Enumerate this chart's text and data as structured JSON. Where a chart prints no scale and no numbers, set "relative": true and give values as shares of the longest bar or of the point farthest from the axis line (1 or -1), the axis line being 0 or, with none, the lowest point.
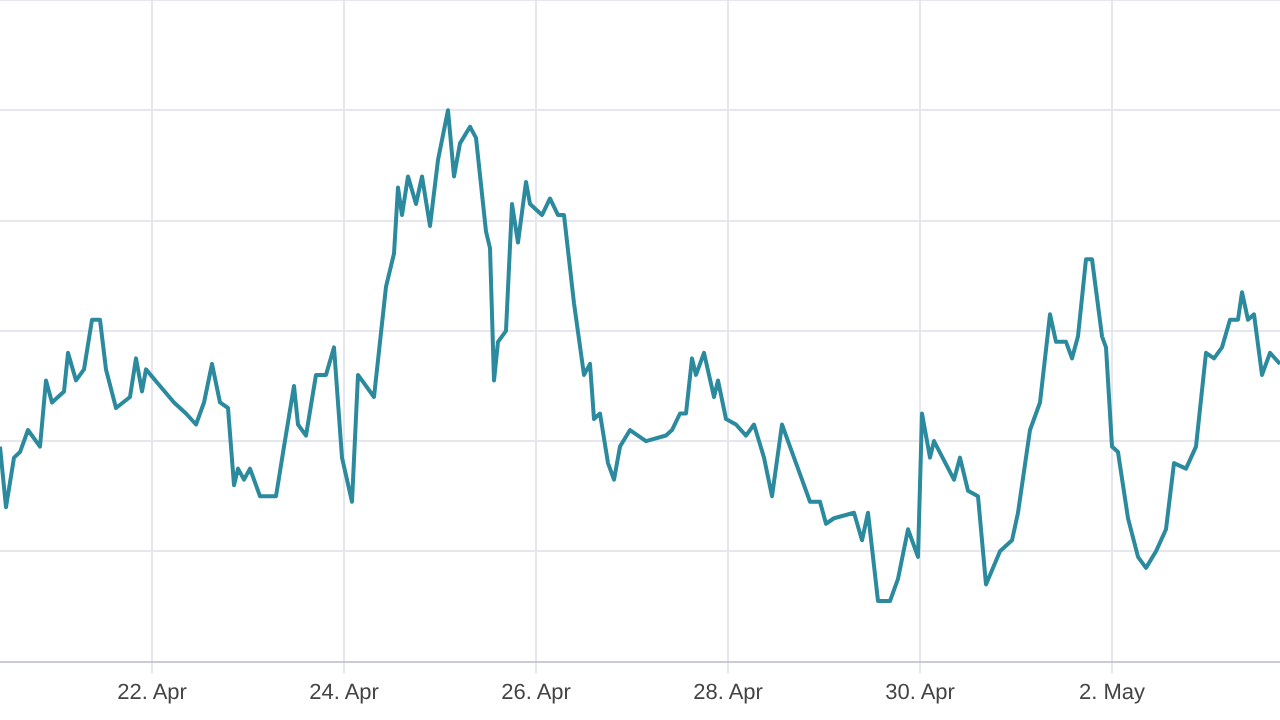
{
  "chart_data": {
    "type": "line",
    "relative": true,
    "grid": true,
    "legend": false,
    "marker": "none",
    "line_style": "solid",
    "xlim": [
      "--04-20T10:00",
      "--05-03T18:00"
    ],
    "xticks": [
      {
        "value": "--04-22",
        "label": "22. Apr"
      },
      {
        "value": "--04-24",
        "label": "24. Apr"
      },
      {
        "value": "--04-26",
        "label": "26. Apr"
      },
      {
        "value": "--04-28",
        "label": "28. Apr"
      },
      {
        "value": "--04-30",
        "label": "30. Apr"
      },
      {
        "value": "--05-02",
        "label": "2. May"
      }
    ],
    "series": [
      {
        "color": "#2b8a9e",
        "x": [
          "--04-20T10:00",
          "--04-20T11:30",
          "--04-20T13:30",
          "--04-20T15:00",
          "--04-20T17:00",
          "--04-20T20:00",
          "--04-20T21:30",
          "--04-20T23:00",
          "--04-21T02:00",
          "--04-21T03:00",
          "--04-21T05:00",
          "--04-21T07:00",
          "--04-21T09:00",
          "--04-21T11:00",
          "--04-21T12:30",
          "--04-21T15:00",
          "--04-21T18:30",
          "--04-21T20:00",
          "--04-21T21:30",
          "--04-21T22:30",
          "--04-22T02:00",
          "--04-22T05:30",
          "--04-22T08:30",
          "--04-22T11:00",
          "--04-22T13:00",
          "--04-22T15:00",
          "--04-22T17:00",
          "--04-22T19:00",
          "--04-22T20:30",
          "--04-22T21:30",
          "--04-22T23:00",
          "--04-23T00:30",
          "--04-23T03:00",
          "--04-23T07:00",
          "--04-23T09:00",
          "--04-23T11:30",
          "--04-23T12:30",
          "--04-23T14:30",
          "--04-23T17:00",
          "--04-23T19:30",
          "--04-23T21:30",
          "--04-23T23:30",
          "--04-24T02:00",
          "--04-24T03:30",
          "--04-24T07:30",
          "--04-24T10:30",
          "--04-24T12:30",
          "--04-24T13:30",
          "--04-24T14:30",
          "--04-24T16:00",
          "--04-24T18:00",
          "--04-24T19:30",
          "--04-24T21:30",
          "--04-24T23:30",
          "--04-25T02:00",
          "--04-25T03:30",
          "--04-25T05:00",
          "--04-25T07:30",
          "--04-25T09:00",
          "--04-25T11:30",
          "--04-25T12:30",
          "--04-25T13:30",
          "--04-25T14:30",
          "--04-25T16:30",
          "--04-25T18:00",
          "--04-25T19:30",
          "--04-25T21:30",
          "--04-25T22:30",
          "--04-26T01:30",
          "--04-26T03:30",
          "--04-26T05:30",
          "--04-26T07:00",
          "--04-26T09:30",
          "--04-26T12:00",
          "--04-26T13:30",
          "--04-26T14:30",
          "--04-26T16:00",
          "--04-26T18:00",
          "--04-26T19:30",
          "--04-26T21:00",
          "--04-26T23:30",
          "--04-27T03:30",
          "--04-27T08:30",
          "--04-27T10:00",
          "--04-27T12:00",
          "--04-27T13:30",
          "--04-27T15:00",
          "--04-27T16:00",
          "--04-27T18:00",
          "--04-27T20:30",
          "--04-27T21:30",
          "--04-27T23:30",
          "--04-28T02:00",
          "--04-28T04:30",
          "--04-28T06:30",
          "--04-28T09:00",
          "--04-28T11:00",
          "--04-28T13:30",
          "--04-28T15:30",
          "--04-28T18:30",
          "--04-28T20:30",
          "--04-28T23:00",
          "--04-29T00:30",
          "--04-29T02:30",
          "--04-29T07:30",
          "--04-29T09:30",
          "--04-29T11:00",
          "--04-29T13:30",
          "--04-29T16:30",
          "--04-29T18:30",
          "--04-29T21:00",
          "--04-29T23:30",
          "--04-30T00:30",
          "--04-30T02:30",
          "--04-30T03:30",
          "--04-30T08:30",
          "--04-30T10:00",
          "--04-30T12:00",
          "--04-30T14:30",
          "--04-30T16:30",
          "--04-30T20:00",
          "--04-30T23:00",
          "--05-01T00:30",
          "--05-01T03:30",
          "--05-01T06:00",
          "--05-01T08:30",
          "--05-01T10:00",
          "--05-01T12:30",
          "--05-01T14:00",
          "--05-01T15:30",
          "--05-01T17:30",
          "--05-01T19:00",
          "--05-01T21:30",
          "--05-01T22:30",
          "--05-02T00:00",
          "--05-02T01:30",
          "--05-02T04:00",
          "--05-02T06:30",
          "--05-02T08:30",
          "--05-02T11:00",
          "--05-02T13:30",
          "--05-02T15:30",
          "--05-02T18:30",
          "--05-02T21:00",
          "--05-02T23:30",
          "--05-03T01:30",
          "--05-03T03:30",
          "--05-03T05:30",
          "--05-03T07:30",
          "--05-03T08:30",
          "--05-03T10:00",
          "--05-03T11:30",
          "--05-03T13:30",
          "--05-03T15:30",
          "--05-03T18:00"
        ],
        "values": [
          0.39,
          0.28,
          0.37,
          0.38,
          0.42,
          0.39,
          0.51,
          0.47,
          0.49,
          0.56,
          0.51,
          0.53,
          0.62,
          0.62,
          0.53,
          0.46,
          0.48,
          0.55,
          0.49,
          0.53,
          0.5,
          0.47,
          0.45,
          0.43,
          0.47,
          0.54,
          0.47,
          0.46,
          0.32,
          0.35,
          0.33,
          0.35,
          0.3,
          0.3,
          0.39,
          0.5,
          0.43,
          0.41,
          0.52,
          0.52,
          0.57,
          0.37,
          0.29,
          0.52,
          0.48,
          0.68,
          0.74,
          0.86,
          0.81,
          0.88,
          0.83,
          0.88,
          0.79,
          0.91,
          1.0,
          0.88,
          0.94,
          0.97,
          0.95,
          0.78,
          0.75,
          0.51,
          0.58,
          0.6,
          0.83,
          0.76,
          0.87,
          0.83,
          0.81,
          0.84,
          0.81,
          0.81,
          0.65,
          0.52,
          0.54,
          0.44,
          0.45,
          0.36,
          0.33,
          0.39,
          0.42,
          0.4,
          0.41,
          0.42,
          0.45,
          0.45,
          0.55,
          0.52,
          0.56,
          0.48,
          0.51,
          0.44,
          0.43,
          0.41,
          0.43,
          0.37,
          0.3,
          0.43,
          0.39,
          0.33,
          0.29,
          0.29,
          0.25,
          0.26,
          0.27,
          0.22,
          0.27,
          0.11,
          0.11,
          0.15,
          0.24,
          0.19,
          0.45,
          0.37,
          0.4,
          0.33,
          0.37,
          0.31,
          0.3,
          0.14,
          0.2,
          0.22,
          0.27,
          0.42,
          0.47,
          0.63,
          0.58,
          0.58,
          0.55,
          0.59,
          0.73,
          0.73,
          0.59,
          0.57,
          0.39,
          0.38,
          0.26,
          0.19,
          0.17,
          0.2,
          0.24,
          0.36,
          0.35,
          0.39,
          0.56,
          0.55,
          0.57,
          0.62,
          0.62,
          0.67,
          0.62,
          0.63,
          0.52,
          0.56,
          0.54
        ]
      }
    ]
  }
}
